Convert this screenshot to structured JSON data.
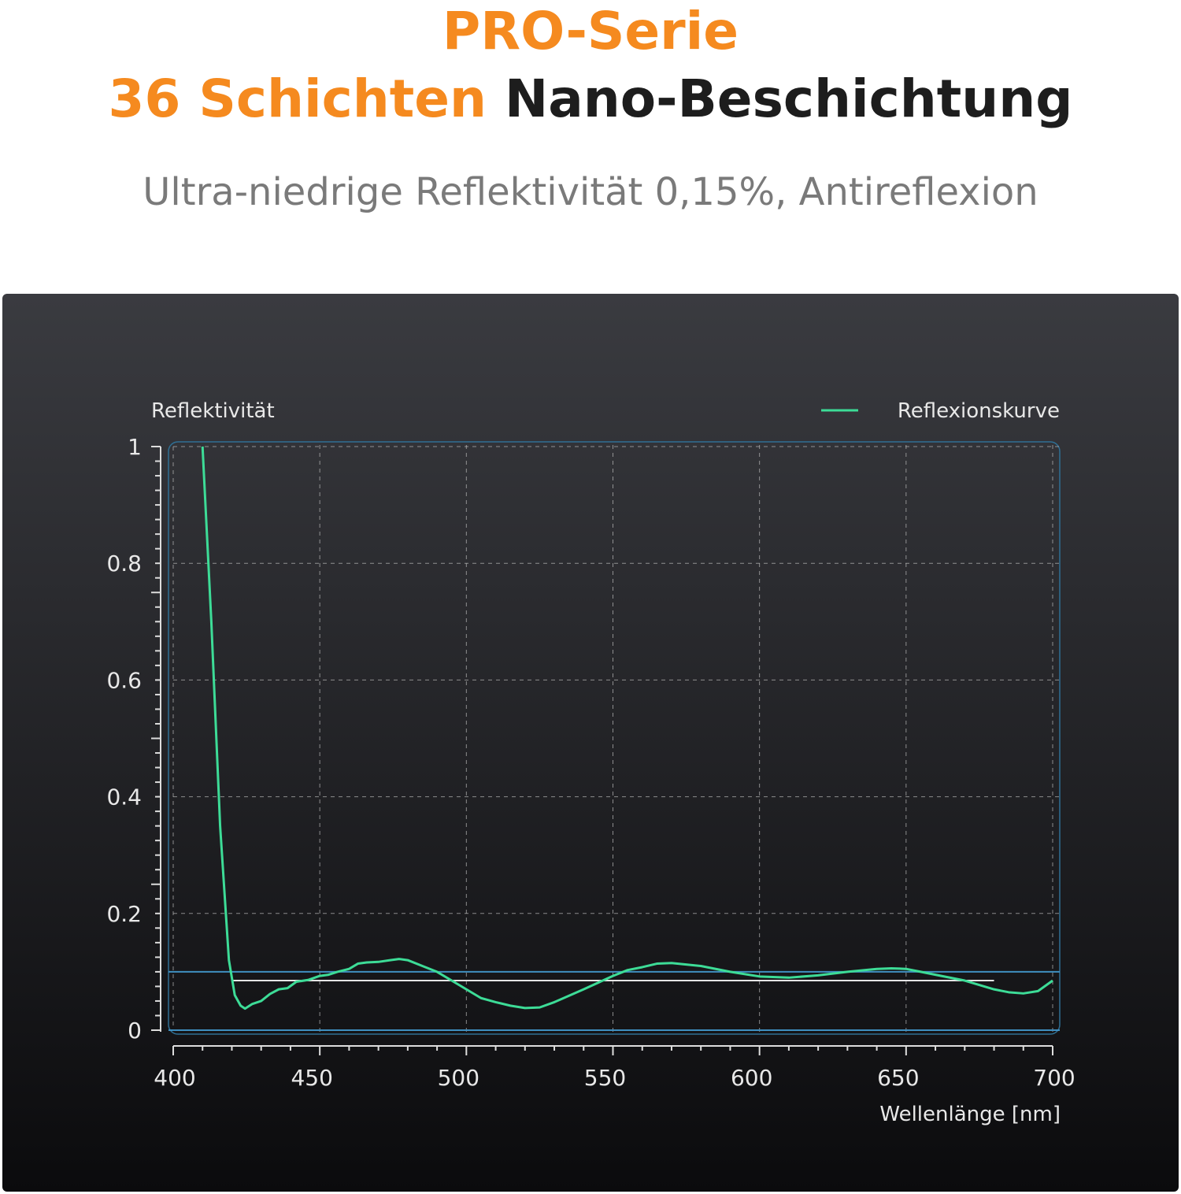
{
  "header": {
    "line1": "PRO-Serie",
    "line2_highlight": "36 Schichten",
    "line2_rest": "Nano-Beschichtung",
    "subtitle": "Ultra-niedrige Reflektivität 0,15%, Antireflexion"
  },
  "colors": {
    "accent": "#f58a1f",
    "curve": "#3ddc97",
    "reference": "#3f8fc0",
    "average": "#e6e6e6"
  },
  "chart_data": {
    "type": "line",
    "ylabel": "Reflektivität",
    "xlabel": "Wellenlänge [nm]",
    "xlim": [
      400,
      700
    ],
    "ylim": [
      0,
      1
    ],
    "xticks": [
      400,
      450,
      500,
      550,
      600,
      650,
      700
    ],
    "yticks": [
      {
        "v": 0,
        "label": "0"
      },
      {
        "v": 0.2,
        "label": "0.2"
      },
      {
        "v": 0.4,
        "label": "0.4"
      },
      {
        "v": 0.6,
        "label": "0.6"
      },
      {
        "v": 0.8,
        "label": "0.8"
      },
      {
        "v": 1,
        "label": "1"
      }
    ],
    "grid": true,
    "legend_position": "top-right",
    "series": [
      {
        "name": "Reflexionskurve",
        "x": [
          410,
          413,
          416,
          419,
          421,
          423,
          424.5,
          427,
          430,
          433,
          436,
          439,
          442,
          446,
          450,
          453,
          456,
          460,
          463,
          466,
          470,
          474,
          477,
          480,
          485,
          490,
          495,
          500,
          505,
          510,
          515,
          520,
          525,
          530,
          540,
          550,
          555,
          560,
          565,
          570,
          580,
          590,
          600,
          610,
          620,
          630,
          640,
          645,
          650,
          655,
          660,
          670,
          680,
          685,
          690,
          695,
          700
        ],
        "y": [
          1.0,
          0.7,
          0.35,
          0.12,
          0.06,
          0.042,
          0.037,
          0.045,
          0.05,
          0.062,
          0.07,
          0.072,
          0.083,
          0.086,
          0.093,
          0.095,
          0.1,
          0.105,
          0.114,
          0.116,
          0.117,
          0.12,
          0.122,
          0.12,
          0.11,
          0.1,
          0.085,
          0.07,
          0.055,
          0.048,
          0.042,
          0.038,
          0.039,
          0.048,
          0.07,
          0.093,
          0.103,
          0.108,
          0.114,
          0.115,
          0.11,
          0.1,
          0.092,
          0.09,
          0.094,
          0.1,
          0.105,
          0.106,
          0.105,
          0.1,
          0.095,
          0.085,
          0.07,
          0.065,
          0.063,
          0.067,
          0.085
        ]
      }
    ],
    "reference_lines": [
      {
        "y": 0.1,
        "x": [
          400,
          700
        ]
      },
      {
        "y": 0.085,
        "x": [
          420,
          680
        ]
      }
    ]
  }
}
